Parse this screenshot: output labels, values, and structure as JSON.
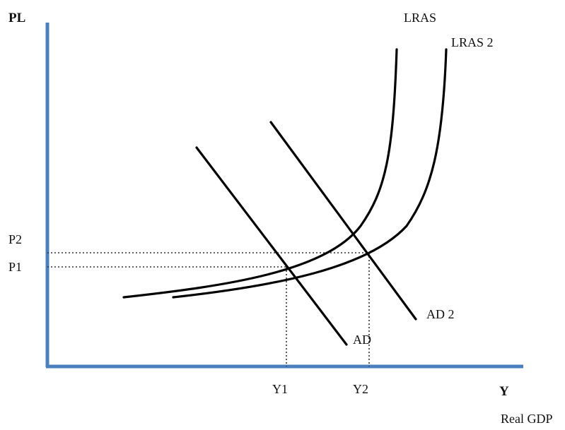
{
  "diagram": {
    "y_axis_label": "PL",
    "x_axis_label": "Y",
    "x_axis_caption": "Real GDP",
    "axis_color": "#4a7fc0",
    "curves": {
      "lras": "LRAS",
      "lras2": "LRAS 2",
      "ad": "AD",
      "ad2": "AD 2"
    },
    "price_levels": {
      "p1": "P1",
      "p2": "P2"
    },
    "output_levels": {
      "y1": "Y1",
      "y2": "Y2"
    }
  }
}
